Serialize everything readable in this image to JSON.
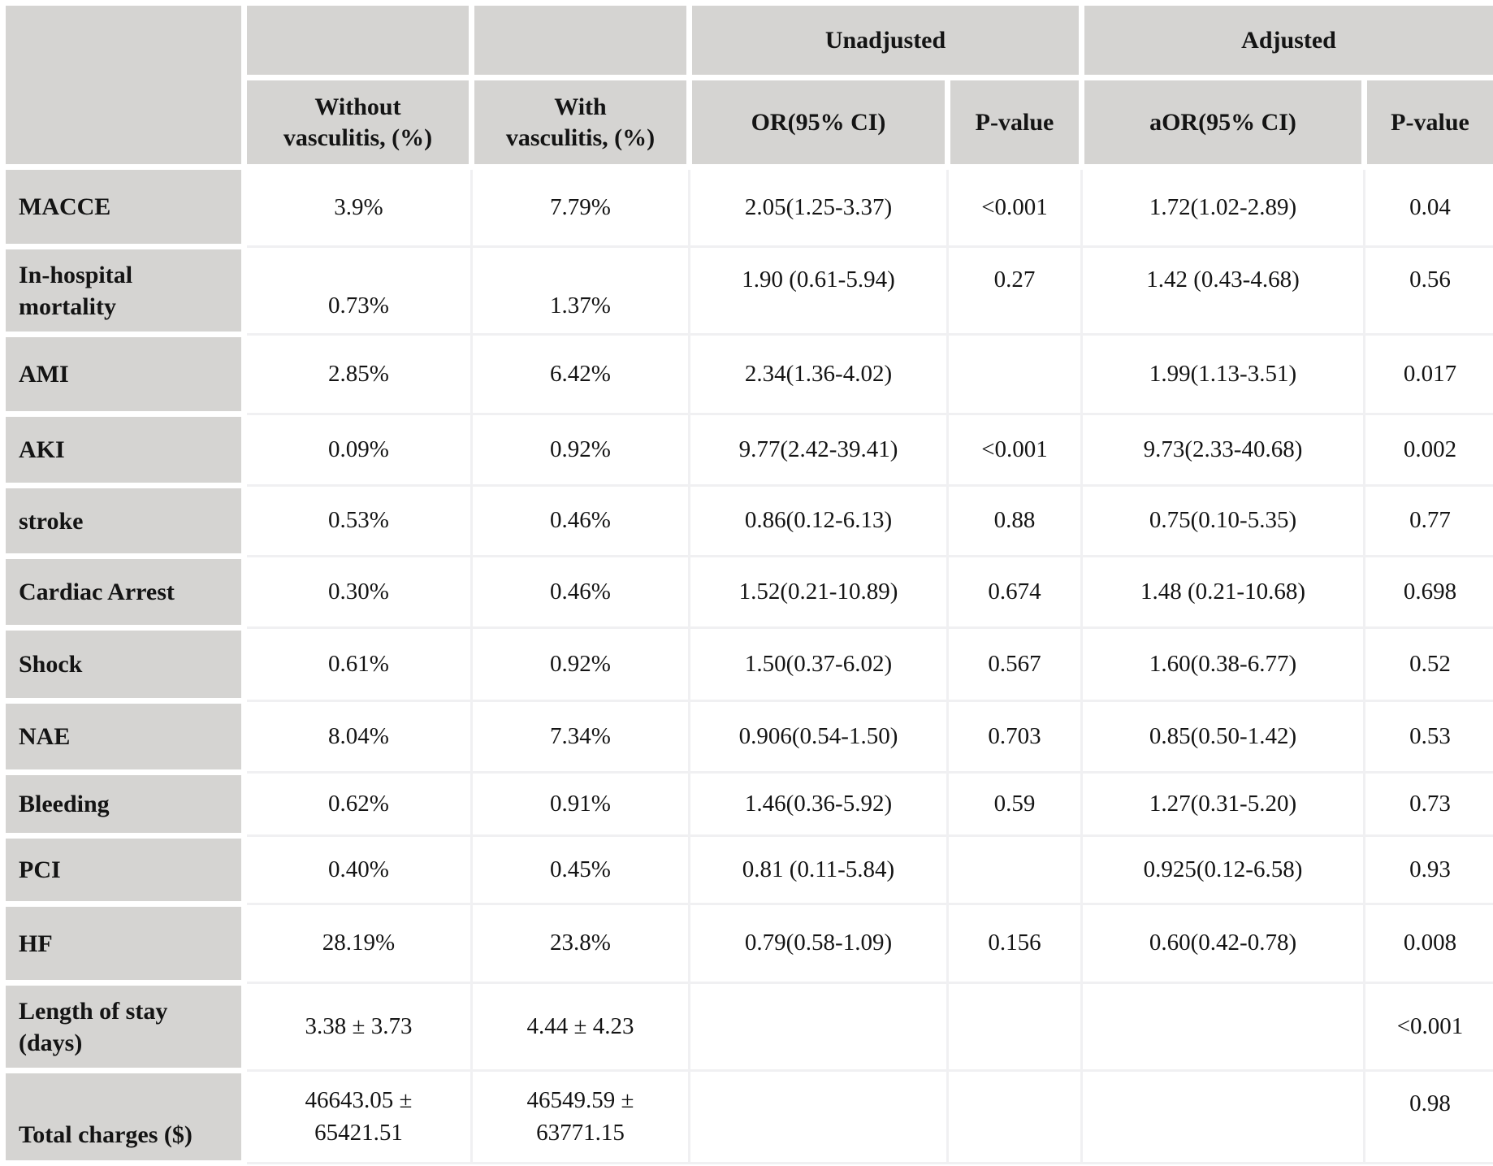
{
  "table": {
    "title_hint": "Outcomes with vs without vasculitis, unadjusted and adjusted odds ratios",
    "colors": {
      "header_bg": "#d5d4d2",
      "grid_line": "#f0f0f2",
      "gap": "#ffffff",
      "text": "#141414"
    },
    "header": {
      "corner": "",
      "spacer_without": "",
      "spacer_with": "",
      "group_unadjusted": "Unadjusted",
      "group_adjusted": "Adjusted",
      "col_without": "Without\nvasculitis, (%)",
      "col_with": "With\nvasculitis, (%)",
      "col_or": "OR(95% CI)",
      "col_p_unadjusted": "P-value",
      "col_aor": "aOR(95% CI)",
      "col_p_adjusted": "P-value"
    },
    "rows": [
      {
        "label": "MACCE",
        "cells": [
          "3.9%",
          "7.79%",
          "2.05(1.25-3.37)",
          "<0.001",
          "1.72(1.02-2.89)",
          "0.04"
        ]
      },
      {
        "label": "In-hospital mortality",
        "cells": [
          "0.73%",
          "1.37%",
          "1.90 (0.61-5.94)",
          "0.27",
          "1.42 (0.43-4.68)",
          "0.56"
        ]
      },
      {
        "label": "AMI",
        "cells": [
          "2.85%",
          "6.42%",
          "2.34(1.36-4.02)",
          "",
          "1.99(1.13-3.51)",
          "0.017"
        ]
      },
      {
        "label": "AKI",
        "cells": [
          "0.09%",
          "0.92%",
          "9.77(2.42-39.41)",
          "<0.001",
          "9.73(2.33-40.68)",
          "0.002"
        ]
      },
      {
        "label": "stroke",
        "cells": [
          "0.53%",
          "0.46%",
          "0.86(0.12-6.13)",
          "0.88",
          "0.75(0.10-5.35)",
          "0.77"
        ]
      },
      {
        "label": "Cardiac Arrest",
        "cells": [
          "0.30%",
          "0.46%",
          "1.52(0.21-10.89)",
          "0.674",
          "1.48 (0.21-10.68)",
          "0.698"
        ]
      },
      {
        "label": "Shock",
        "cells": [
          "0.61%",
          "0.92%",
          "1.50(0.37-6.02)",
          "0.567",
          "1.60(0.38-6.77)",
          "0.52"
        ]
      },
      {
        "label": "NAE",
        "cells": [
          "8.04%",
          "7.34%",
          "0.906(0.54-1.50)",
          "0.703",
          "0.85(0.50-1.42)",
          "0.53"
        ]
      },
      {
        "label": "Bleeding",
        "cells": [
          "0.62%",
          "0.91%",
          "1.46(0.36-5.92)",
          "0.59",
          "1.27(0.31-5.20)",
          "0.73"
        ]
      },
      {
        "label": "PCI",
        "cells": [
          "0.40%",
          "0.45%",
          "0.81 (0.11-5.84)",
          "",
          "0.925(0.12-6.58)",
          "0.93"
        ]
      },
      {
        "label": "HF",
        "cells": [
          "28.19%",
          "23.8%",
          "0.79(0.58-1.09)",
          "0.156",
          "0.60(0.42-0.78)",
          "0.008"
        ]
      },
      {
        "label": "Length of stay (days)",
        "cells": [
          "3.38 ± 3.73",
          "4.44 ± 4.23",
          "",
          "",
          "",
          "<0.001"
        ]
      },
      {
        "label": "Total charges ($)",
        "cells": [
          "46643.05 ±\n65421.51",
          "46549.59 ±\n63771.15",
          "",
          "",
          "",
          "0.98"
        ]
      }
    ]
  }
}
